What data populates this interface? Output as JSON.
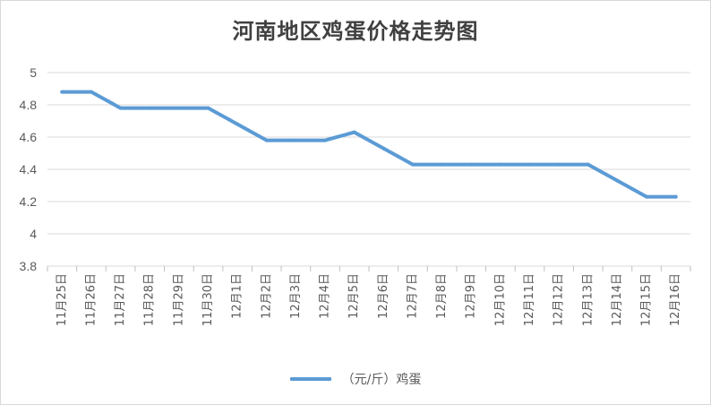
{
  "chart_data": {
    "type": "line",
    "title": "河南地区鸡蛋价格走势图",
    "categories": [
      "11月25日",
      "11月26日",
      "11月27日",
      "11月28日",
      "11月29日",
      "11月30日",
      "12月1日",
      "12月2日",
      "12月3日",
      "12月4日",
      "12月5日",
      "12月6日",
      "12月7日",
      "12月8日",
      "12月9日",
      "12月10日",
      "12月11日",
      "12月12日",
      "12月13日",
      "12月14日",
      "12月15日",
      "12月16日"
    ],
    "series": [
      {
        "name": "（元/斤）鸡蛋",
        "values": [
          4.88,
          4.88,
          4.78,
          4.78,
          4.78,
          4.78,
          4.68,
          4.58,
          4.58,
          4.58,
          4.63,
          4.53,
          4.43,
          4.43,
          4.43,
          4.43,
          4.43,
          4.43,
          4.43,
          4.33,
          4.23,
          4.23
        ]
      }
    ],
    "yticks": [
      "3.8",
      "4",
      "4.2",
      "4.4",
      "4.6",
      "4.8",
      "5"
    ],
    "ylim": [
      3.8,
      5
    ],
    "grid": true,
    "legend_position": "bottom",
    "colors": {
      "line": "#5b9bd5",
      "grid": "#d9d9d9",
      "axis": "#bfbfbf",
      "text": "#595959"
    }
  }
}
